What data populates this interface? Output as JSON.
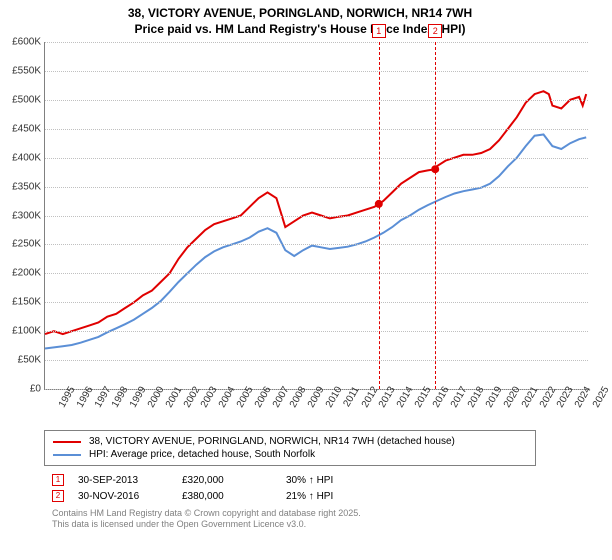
{
  "title_line1": "38, VICTORY AVENUE, PORINGLAND, NORWICH, NR14 7WH",
  "title_line2": "Price paid vs. HM Land Registry's House Price Index (HPI)",
  "title_fontsize": 12,
  "axis_fontsize": 10,
  "chart": {
    "type": "line",
    "background_color": "#ffffff",
    "grid_color": "#c0c0c0",
    "axis_color": "#808080",
    "ylim": [
      0,
      600000
    ],
    "ytick_step": 50000,
    "yticks": [
      "£0",
      "£50K",
      "£100K",
      "£150K",
      "£200K",
      "£250K",
      "£300K",
      "£350K",
      "£400K",
      "£450K",
      "£500K",
      "£550K",
      "£600K"
    ],
    "xlim": [
      1995,
      2025.5
    ],
    "xticks": [
      "1995",
      "1996",
      "1997",
      "1998",
      "1999",
      "2000",
      "2001",
      "2002",
      "2003",
      "2004",
      "2005",
      "2006",
      "2007",
      "2008",
      "2009",
      "2010",
      "2011",
      "2012",
      "2013",
      "2014",
      "2015",
      "2016",
      "2017",
      "2018",
      "2019",
      "2020",
      "2021",
      "2022",
      "2023",
      "2024",
      "2025"
    ],
    "series": [
      {
        "name": "38, VICTORY AVENUE, PORINGLAND, NORWICH, NR14 7WH (detached house)",
        "color": "#e00000",
        "line_width": 2,
        "data": [
          [
            1995,
            95000
          ],
          [
            1995.5,
            100000
          ],
          [
            1996,
            95000
          ],
          [
            1996.5,
            100000
          ],
          [
            1997,
            105000
          ],
          [
            1997.5,
            110000
          ],
          [
            1998,
            115000
          ],
          [
            1998.5,
            125000
          ],
          [
            1999,
            130000
          ],
          [
            1999.5,
            140000
          ],
          [
            2000,
            150000
          ],
          [
            2000.5,
            162000
          ],
          [
            2001,
            170000
          ],
          [
            2001.5,
            185000
          ],
          [
            2002,
            200000
          ],
          [
            2002.5,
            225000
          ],
          [
            2003,
            245000
          ],
          [
            2003.5,
            260000
          ],
          [
            2004,
            275000
          ],
          [
            2004.5,
            285000
          ],
          [
            2005,
            290000
          ],
          [
            2005.5,
            295000
          ],
          [
            2006,
            300000
          ],
          [
            2006.5,
            315000
          ],
          [
            2007,
            330000
          ],
          [
            2007.5,
            340000
          ],
          [
            2008,
            330000
          ],
          [
            2008.2,
            310000
          ],
          [
            2008.5,
            280000
          ],
          [
            2009,
            290000
          ],
          [
            2009.5,
            300000
          ],
          [
            2010,
            305000
          ],
          [
            2010.5,
            300000
          ],
          [
            2011,
            295000
          ],
          [
            2011.5,
            298000
          ],
          [
            2012,
            300000
          ],
          [
            2012.5,
            305000
          ],
          [
            2013,
            310000
          ],
          [
            2013.5,
            315000
          ],
          [
            2013.75,
            320000
          ],
          [
            2014,
            325000
          ],
          [
            2014.5,
            340000
          ],
          [
            2015,
            355000
          ],
          [
            2015.5,
            365000
          ],
          [
            2016,
            375000
          ],
          [
            2016.5,
            378000
          ],
          [
            2016.92,
            380000
          ],
          [
            2017,
            385000
          ],
          [
            2017.5,
            395000
          ],
          [
            2018,
            400000
          ],
          [
            2018.5,
            405000
          ],
          [
            2019,
            405000
          ],
          [
            2019.5,
            408000
          ],
          [
            2020,
            415000
          ],
          [
            2020.5,
            430000
          ],
          [
            2021,
            450000
          ],
          [
            2021.5,
            470000
          ],
          [
            2022,
            495000
          ],
          [
            2022.5,
            510000
          ],
          [
            2023,
            515000
          ],
          [
            2023.3,
            510000
          ],
          [
            2023.5,
            490000
          ],
          [
            2024,
            485000
          ],
          [
            2024.5,
            500000
          ],
          [
            2025,
            505000
          ],
          [
            2025.2,
            490000
          ],
          [
            2025.4,
            510000
          ]
        ]
      },
      {
        "name": "HPI: Average price, detached house, South Norfolk",
        "color": "#5b8fd6",
        "line_width": 2,
        "data": [
          [
            1995,
            70000
          ],
          [
            1995.5,
            72000
          ],
          [
            1996,
            74000
          ],
          [
            1996.5,
            76000
          ],
          [
            1997,
            80000
          ],
          [
            1997.5,
            85000
          ],
          [
            1998,
            90000
          ],
          [
            1998.5,
            98000
          ],
          [
            1999,
            105000
          ],
          [
            1999.5,
            112000
          ],
          [
            2000,
            120000
          ],
          [
            2000.5,
            130000
          ],
          [
            2001,
            140000
          ],
          [
            2001.5,
            152000
          ],
          [
            2002,
            168000
          ],
          [
            2002.5,
            185000
          ],
          [
            2003,
            200000
          ],
          [
            2003.5,
            215000
          ],
          [
            2004,
            228000
          ],
          [
            2004.5,
            238000
          ],
          [
            2005,
            245000
          ],
          [
            2005.5,
            250000
          ],
          [
            2006,
            255000
          ],
          [
            2006.5,
            262000
          ],
          [
            2007,
            272000
          ],
          [
            2007.5,
            278000
          ],
          [
            2008,
            270000
          ],
          [
            2008.5,
            240000
          ],
          [
            2009,
            230000
          ],
          [
            2009.5,
            240000
          ],
          [
            2010,
            248000
          ],
          [
            2010.5,
            245000
          ],
          [
            2011,
            242000
          ],
          [
            2011.5,
            244000
          ],
          [
            2012,
            246000
          ],
          [
            2012.5,
            250000
          ],
          [
            2013,
            255000
          ],
          [
            2013.5,
            262000
          ],
          [
            2014,
            270000
          ],
          [
            2014.5,
            280000
          ],
          [
            2015,
            292000
          ],
          [
            2015.5,
            300000
          ],
          [
            2016,
            310000
          ],
          [
            2016.5,
            318000
          ],
          [
            2017,
            325000
          ],
          [
            2017.5,
            332000
          ],
          [
            2018,
            338000
          ],
          [
            2018.5,
            342000
          ],
          [
            2019,
            345000
          ],
          [
            2019.5,
            348000
          ],
          [
            2020,
            355000
          ],
          [
            2020.5,
            368000
          ],
          [
            2021,
            385000
          ],
          [
            2021.5,
            400000
          ],
          [
            2022,
            420000
          ],
          [
            2022.5,
            438000
          ],
          [
            2023,
            440000
          ],
          [
            2023.5,
            420000
          ],
          [
            2024,
            415000
          ],
          [
            2024.5,
            425000
          ],
          [
            2025,
            432000
          ],
          [
            2025.4,
            435000
          ]
        ]
      }
    ],
    "events": [
      {
        "n": "1",
        "x": 2013.75,
        "color": "#e00000",
        "marker_y": 320000
      },
      {
        "n": "2",
        "x": 2016.92,
        "color": "#e00000",
        "marker_y": 380000
      }
    ]
  },
  "legend": {
    "series": [
      {
        "color": "#e00000",
        "label": "38, VICTORY AVENUE, PORINGLAND, NORWICH, NR14 7WH (detached house)"
      },
      {
        "color": "#5b8fd6",
        "label": "HPI: Average price, detached house, South Norfolk"
      }
    ],
    "events": [
      {
        "n": "1",
        "color": "#e00000",
        "date": "30-SEP-2013",
        "price": "£320,000",
        "delta": "30% ↑ HPI"
      },
      {
        "n": "2",
        "color": "#e00000",
        "date": "30-NOV-2016",
        "price": "£380,000",
        "delta": "21% ↑ HPI"
      }
    ]
  },
  "attribution_line1": "Contains HM Land Registry data © Crown copyright and database right 2025.",
  "attribution_line2": "This data is licensed under the Open Government Licence v3.0."
}
